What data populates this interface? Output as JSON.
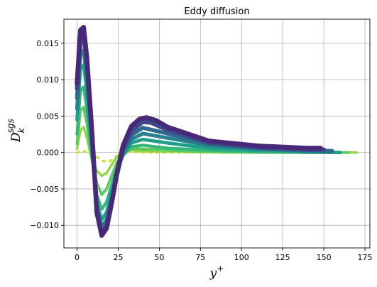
{
  "chart_data": {
    "type": "line",
    "title": "Eddy diffusion",
    "xlabel_main": "y",
    "xlabel_sup": "+",
    "ylabel_main": "D",
    "ylabel_sub": "k",
    "ylabel_sup": "sgs",
    "xlim": [
      -8,
      178
    ],
    "ylim": [
      -0.0131,
      0.0183
    ],
    "x_ticks": [
      {
        "value": 0,
        "label": "0"
      },
      {
        "value": 25,
        "label": "25"
      },
      {
        "value": 50,
        "label": "50"
      },
      {
        "value": 75,
        "label": "75"
      },
      {
        "value": 100,
        "label": "100"
      },
      {
        "value": 125,
        "label": "125"
      },
      {
        "value": 150,
        "label": "150"
      },
      {
        "value": 175,
        "label": "175"
      }
    ],
    "y_ticks": [
      {
        "value": -0.01,
        "label": "−0.010"
      },
      {
        "value": -0.005,
        "label": "−0.005"
      },
      {
        "value": 0.0,
        "label": "0.000"
      },
      {
        "value": 0.005,
        "label": "0.005"
      },
      {
        "value": 0.01,
        "label": "0.010"
      },
      {
        "value": 0.015,
        "label": "0.015"
      }
    ],
    "grid": true,
    "series": [
      {
        "color": "#c8e020",
        "points": [
          [
            0,
            0
          ],
          [
            4,
            0.0002
          ],
          [
            8,
            -0.0002
          ],
          [
            12,
            -0.0006
          ],
          [
            16,
            -0.0012
          ],
          [
            20,
            -0.0012
          ],
          [
            24,
            -0.0005
          ],
          [
            28,
            0.0001
          ],
          [
            32,
            0.0001
          ],
          [
            40,
            0
          ],
          [
            60,
            0
          ],
          [
            90,
            0
          ],
          [
            120,
            0
          ],
          [
            150,
            0
          ],
          [
            170,
            0
          ]
        ]
      },
      {
        "color": "#90d743",
        "points": [
          [
            0,
            0.0005
          ],
          [
            2,
            0.003
          ],
          [
            4,
            0.0035
          ],
          [
            6,
            0.002
          ],
          [
            9,
            -0.001
          ],
          [
            12,
            -0.0025
          ],
          [
            15,
            -0.0032
          ],
          [
            18,
            -0.0028
          ],
          [
            21,
            -0.0017
          ],
          [
            24,
            -0.0007
          ],
          [
            28,
            0.0001
          ],
          [
            33,
            0.0003
          ],
          [
            40,
            0.0002
          ],
          [
            60,
            0.0001
          ],
          [
            90,
            0
          ],
          [
            120,
            0
          ],
          [
            150,
            0
          ],
          [
            170,
            0
          ]
        ]
      },
      {
        "color": "#5ec962",
        "points": [
          [
            0,
            0.0012
          ],
          [
            2,
            0.0058
          ],
          [
            4,
            0.0062
          ],
          [
            6,
            0.004
          ],
          [
            9,
            -0.001
          ],
          [
            12,
            -0.0042
          ],
          [
            15,
            -0.0058
          ],
          [
            18,
            -0.005
          ],
          [
            21,
            -0.0032
          ],
          [
            24,
            -0.0015
          ],
          [
            28,
            -0.0002
          ],
          [
            33,
            0.0005
          ],
          [
            40,
            0.0005
          ],
          [
            55,
            0.0003
          ],
          [
            80,
            0.0001
          ],
          [
            110,
            0
          ],
          [
            140,
            0
          ],
          [
            165,
            0
          ]
        ]
      },
      {
        "color": "#35b779",
        "points": [
          [
            0,
            0.0025
          ],
          [
            2,
            0.0085
          ],
          [
            4,
            0.009
          ],
          [
            6,
            0.006
          ],
          [
            9,
            -0.0005
          ],
          [
            12,
            -0.0058
          ],
          [
            15,
            -0.0078
          ],
          [
            18,
            -0.0068
          ],
          [
            21,
            -0.0045
          ],
          [
            24,
            -0.0022
          ],
          [
            28,
            -0.0004
          ],
          [
            33,
            0.0008
          ],
          [
            40,
            0.001
          ],
          [
            55,
            0.0006
          ],
          [
            80,
            0.0003
          ],
          [
            110,
            0.0001
          ],
          [
            140,
            0
          ],
          [
            160,
            0
          ]
        ]
      },
      {
        "color": "#1f9e89",
        "points": [
          [
            0,
            0.0045
          ],
          [
            2,
            0.0115
          ],
          [
            4,
            0.012
          ],
          [
            6,
            0.0085
          ],
          [
            9,
            0.0005
          ],
          [
            12,
            -0.007
          ],
          [
            15,
            -0.0092
          ],
          [
            18,
            -0.0082
          ],
          [
            21,
            -0.0055
          ],
          [
            24,
            -0.0027
          ],
          [
            28,
            -0.0003
          ],
          [
            33,
            0.0013
          ],
          [
            40,
            0.0018
          ],
          [
            55,
            0.0013
          ],
          [
            80,
            0.0006
          ],
          [
            110,
            0.0003
          ],
          [
            140,
            0.0001
          ],
          [
            160,
            0
          ]
        ]
      },
      {
        "color": "#26828e",
        "points": [
          [
            0,
            0.006
          ],
          [
            2,
            0.0135
          ],
          [
            4,
            0.014
          ],
          [
            6,
            0.0102
          ],
          [
            9,
            0.0015
          ],
          [
            12,
            -0.0075
          ],
          [
            15,
            -0.0102
          ],
          [
            18,
            -0.0092
          ],
          [
            21,
            -0.0062
          ],
          [
            24,
            -0.003
          ],
          [
            28,
            0
          ],
          [
            33,
            0.0018
          ],
          [
            40,
            0.0026
          ],
          [
            55,
            0.002
          ],
          [
            80,
            0.001
          ],
          [
            110,
            0.0005
          ],
          [
            140,
            0.0002
          ],
          [
            155,
            0.0001
          ]
        ]
      },
      {
        "color": "#31688e",
        "points": [
          [
            0,
            0.0075
          ],
          [
            2,
            0.015
          ],
          [
            4,
            0.0158
          ],
          [
            6,
            0.0118
          ],
          [
            9,
            0.0025
          ],
          [
            12,
            -0.0078
          ],
          [
            15,
            -0.0108
          ],
          [
            18,
            -0.0098
          ],
          [
            21,
            -0.0067
          ],
          [
            24,
            -0.0032
          ],
          [
            28,
            0.0003
          ],
          [
            33,
            0.0024
          ],
          [
            40,
            0.0034
          ],
          [
            55,
            0.0026
          ],
          [
            80,
            0.0012
          ],
          [
            110,
            0.0006
          ],
          [
            140,
            0.0003
          ],
          [
            155,
            0.0002
          ]
        ]
      },
      {
        "color": "#3e4989",
        "points": [
          [
            0,
            0.0088
          ],
          [
            2,
            0.0162
          ],
          [
            4,
            0.0168
          ],
          [
            6,
            0.0128
          ],
          [
            9,
            0.003
          ],
          [
            12,
            -0.008
          ],
          [
            15,
            -0.0112
          ],
          [
            18,
            -0.0102
          ],
          [
            21,
            -0.007
          ],
          [
            24,
            -0.0033
          ],
          [
            28,
            0.0006
          ],
          [
            33,
            0.003
          ],
          [
            40,
            0.0042
          ],
          [
            45,
            0.0041
          ],
          [
            55,
            0.0031
          ],
          [
            80,
            0.0014
          ],
          [
            110,
            0.0007
          ],
          [
            140,
            0.0004
          ],
          [
            150,
            0.0004
          ]
        ]
      },
      {
        "color": "#482878",
        "points": [
          [
            0,
            0.0095
          ],
          [
            2,
            0.0168
          ],
          [
            4,
            0.0172
          ],
          [
            6,
            0.013
          ],
          [
            9,
            0.003
          ],
          [
            12,
            -0.0082
          ],
          [
            15,
            -0.0114
          ],
          [
            18,
            -0.0104
          ],
          [
            21,
            -0.007
          ],
          [
            24,
            -0.003
          ],
          [
            28,
            0.001
          ],
          [
            33,
            0.0036
          ],
          [
            38,
            0.0046
          ],
          [
            42,
            0.0048
          ],
          [
            48,
            0.0044
          ],
          [
            55,
            0.0035
          ],
          [
            80,
            0.0016
          ],
          [
            110,
            0.0009
          ],
          [
            140,
            0.0006
          ],
          [
            148,
            0.0006
          ]
        ]
      }
    ]
  }
}
